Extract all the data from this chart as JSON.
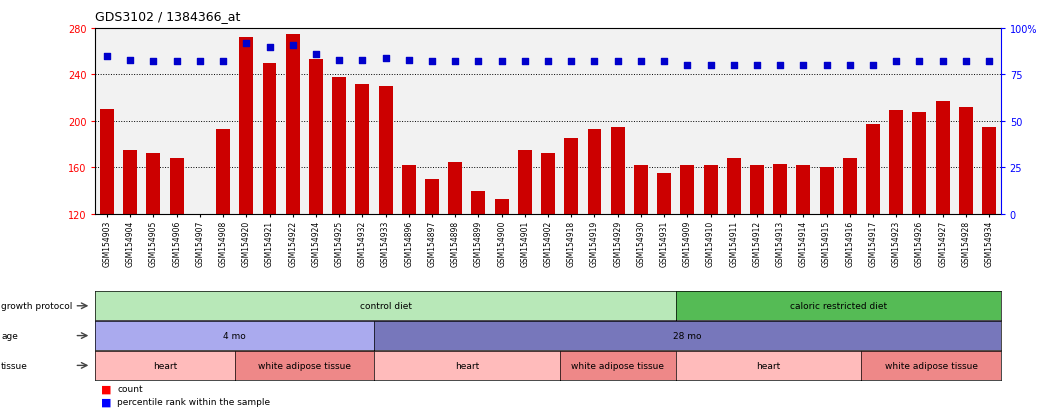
{
  "title": "GDS3102 / 1384366_at",
  "samples": [
    "GSM154903",
    "GSM154904",
    "GSM154905",
    "GSM154906",
    "GSM154907",
    "GSM154908",
    "GSM154920",
    "GSM154921",
    "GSM154922",
    "GSM154924",
    "GSM154925",
    "GSM154932",
    "GSM154933",
    "GSM154896",
    "GSM154897",
    "GSM154898",
    "GSM154899",
    "GSM154900",
    "GSM154901",
    "GSM154902",
    "GSM154918",
    "GSM154919",
    "GSM154929",
    "GSM154930",
    "GSM154931",
    "GSM154909",
    "GSM154910",
    "GSM154911",
    "GSM154912",
    "GSM154913",
    "GSM154914",
    "GSM154915",
    "GSM154916",
    "GSM154917",
    "GSM154923",
    "GSM154926",
    "GSM154927",
    "GSM154928",
    "GSM154934"
  ],
  "counts": [
    210,
    175,
    172,
    168,
    120,
    193,
    272,
    250,
    275,
    253,
    238,
    232,
    230,
    162,
    150,
    165,
    140,
    133,
    175,
    172,
    185,
    193,
    195,
    162,
    155,
    162,
    162,
    168,
    162,
    163,
    162,
    160,
    168,
    197,
    209,
    208,
    217,
    212,
    195
  ],
  "percentile_ranks": [
    85,
    83,
    82,
    82,
    82,
    82,
    92,
    90,
    91,
    86,
    83,
    83,
    84,
    83,
    82,
    82,
    82,
    82,
    82,
    82,
    82,
    82,
    82,
    82,
    82,
    80,
    80,
    80,
    80,
    80,
    80,
    80,
    80,
    80,
    82,
    82,
    82,
    82,
    82
  ],
  "bar_color": "#cc0000",
  "dot_color": "#0000cc",
  "ylim_left": [
    120,
    280
  ],
  "ylim_right": [
    0,
    100
  ],
  "yticks_left": [
    120,
    160,
    200,
    240,
    280
  ],
  "yticks_right": [
    0,
    25,
    50,
    75,
    100
  ],
  "grid_values": [
    160,
    200,
    240
  ],
  "growth_protocol_segments": [
    {
      "text": "control diet",
      "start": 0,
      "end": 25,
      "color": "#b8e8b8"
    },
    {
      "text": "caloric restricted diet",
      "start": 25,
      "end": 39,
      "color": "#55bb55"
    }
  ],
  "age_segments": [
    {
      "text": "4 mo",
      "start": 0,
      "end": 12,
      "color": "#aaaaee"
    },
    {
      "text": "28 mo",
      "start": 12,
      "end": 39,
      "color": "#7777bb"
    }
  ],
  "tissue_segments": [
    {
      "text": "heart",
      "start": 0,
      "end": 6,
      "color": "#ffbbbb"
    },
    {
      "text": "white adipose tissue",
      "start": 6,
      "end": 12,
      "color": "#ee8888"
    },
    {
      "text": "heart",
      "start": 12,
      "end": 20,
      "color": "#ffbbbb"
    },
    {
      "text": "white adipose tissue",
      "start": 20,
      "end": 25,
      "color": "#ee8888"
    },
    {
      "text": "heart",
      "start": 25,
      "end": 33,
      "color": "#ffbbbb"
    },
    {
      "text": "white adipose tissue",
      "start": 33,
      "end": 39,
      "color": "#ee8888"
    }
  ],
  "plot_bg": "#f2f2f2",
  "fig_bg": "#ffffff"
}
